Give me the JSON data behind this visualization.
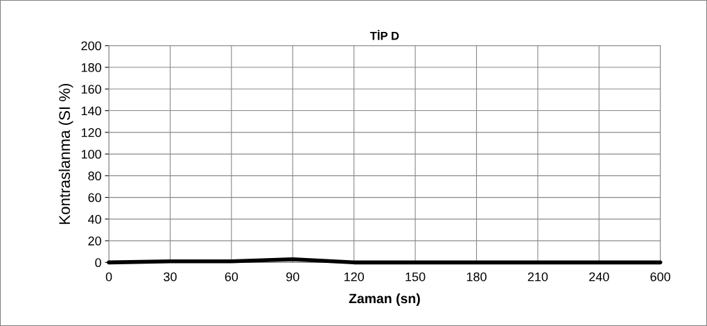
{
  "chart_data": {
    "type": "line",
    "title": "TİP D",
    "xlabel": "Zaman (sn)",
    "ylabel": "Kontraslanma (SI %)",
    "categories": [
      "0",
      "30",
      "60",
      "90",
      "120",
      "150",
      "180",
      "210",
      "240",
      "600"
    ],
    "series": [
      {
        "color": "#000000",
        "values": [
          0,
          1,
          1,
          3,
          0,
          0,
          0,
          0,
          0,
          0
        ]
      }
    ],
    "ylim": [
      0,
      200
    ],
    "yticks": [
      0,
      20,
      40,
      60,
      80,
      100,
      120,
      140,
      160,
      180,
      200
    ],
    "grid": true,
    "marker": "none",
    "line_style": "solid"
  }
}
